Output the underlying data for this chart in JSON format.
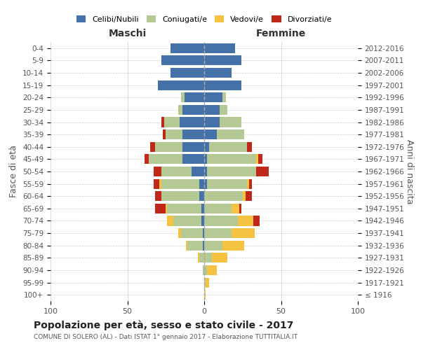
{
  "age_groups": [
    "100+",
    "95-99",
    "90-94",
    "85-89",
    "80-84",
    "75-79",
    "70-74",
    "65-69",
    "60-64",
    "55-59",
    "50-54",
    "45-49",
    "40-44",
    "35-39",
    "30-34",
    "25-29",
    "20-24",
    "15-19",
    "10-14",
    "5-9",
    "0-4"
  ],
  "birth_years": [
    "≤ 1916",
    "1917-1921",
    "1922-1926",
    "1927-1931",
    "1932-1936",
    "1937-1941",
    "1942-1946",
    "1947-1951",
    "1952-1956",
    "1957-1961",
    "1962-1966",
    "1967-1971",
    "1972-1976",
    "1977-1981",
    "1982-1986",
    "1987-1991",
    "1992-1996",
    "1997-2001",
    "2002-2006",
    "2007-2011",
    "2012-2016"
  ],
  "maschi": {
    "celibi": [
      0,
      0,
      0,
      0,
      1,
      1,
      2,
      2,
      3,
      3,
      8,
      14,
      14,
      14,
      16,
      14,
      13,
      30,
      22,
      28,
      22
    ],
    "coniugati": [
      0,
      0,
      1,
      3,
      10,
      14,
      18,
      22,
      25,
      25,
      20,
      22,
      18,
      11,
      10,
      3,
      2,
      0,
      0,
      0,
      0
    ],
    "vedovi": [
      0,
      0,
      0,
      1,
      1,
      2,
      4,
      1,
      0,
      1,
      0,
      0,
      0,
      0,
      0,
      0,
      0,
      0,
      0,
      0,
      0
    ],
    "divorziati": [
      0,
      0,
      0,
      0,
      0,
      0,
      0,
      7,
      4,
      4,
      5,
      3,
      3,
      2,
      2,
      0,
      0,
      0,
      0,
      0,
      0
    ]
  },
  "femmine": {
    "nubili": [
      0,
      0,
      0,
      0,
      0,
      0,
      0,
      0,
      0,
      2,
      2,
      2,
      3,
      8,
      10,
      10,
      12,
      24,
      18,
      24,
      20
    ],
    "coniugate": [
      0,
      1,
      2,
      5,
      12,
      18,
      22,
      18,
      25,
      26,
      32,
      32,
      25,
      18,
      14,
      5,
      2,
      0,
      0,
      0,
      0
    ],
    "vedove": [
      1,
      2,
      6,
      10,
      14,
      15,
      10,
      5,
      2,
      1,
      0,
      1,
      0,
      0,
      0,
      0,
      0,
      0,
      0,
      0,
      0
    ],
    "divorziate": [
      0,
      0,
      0,
      0,
      0,
      0,
      4,
      1,
      4,
      2,
      8,
      3,
      3,
      0,
      0,
      0,
      0,
      0,
      0,
      0,
      0
    ]
  },
  "colors": {
    "celibi": "#4472a8",
    "coniugati": "#b5c994",
    "vedovi": "#f5c242",
    "divorziati": "#c0281a"
  },
  "xlim": 100,
  "title": "Popolazione per età, sesso e stato civile - 2017",
  "subtitle": "COMUNE DI SOLERO (AL) - Dati ISTAT 1° gennaio 2017 - Elaborazione TUTTITALIA.IT",
  "ylabel_left": "Fasce di età",
  "ylabel_right": "Anni di nascita",
  "xlabel_left": "Maschi",
  "xlabel_right": "Femmine",
  "bg_color": "#f5f5f5",
  "bar_bg_color": "#ffffff"
}
